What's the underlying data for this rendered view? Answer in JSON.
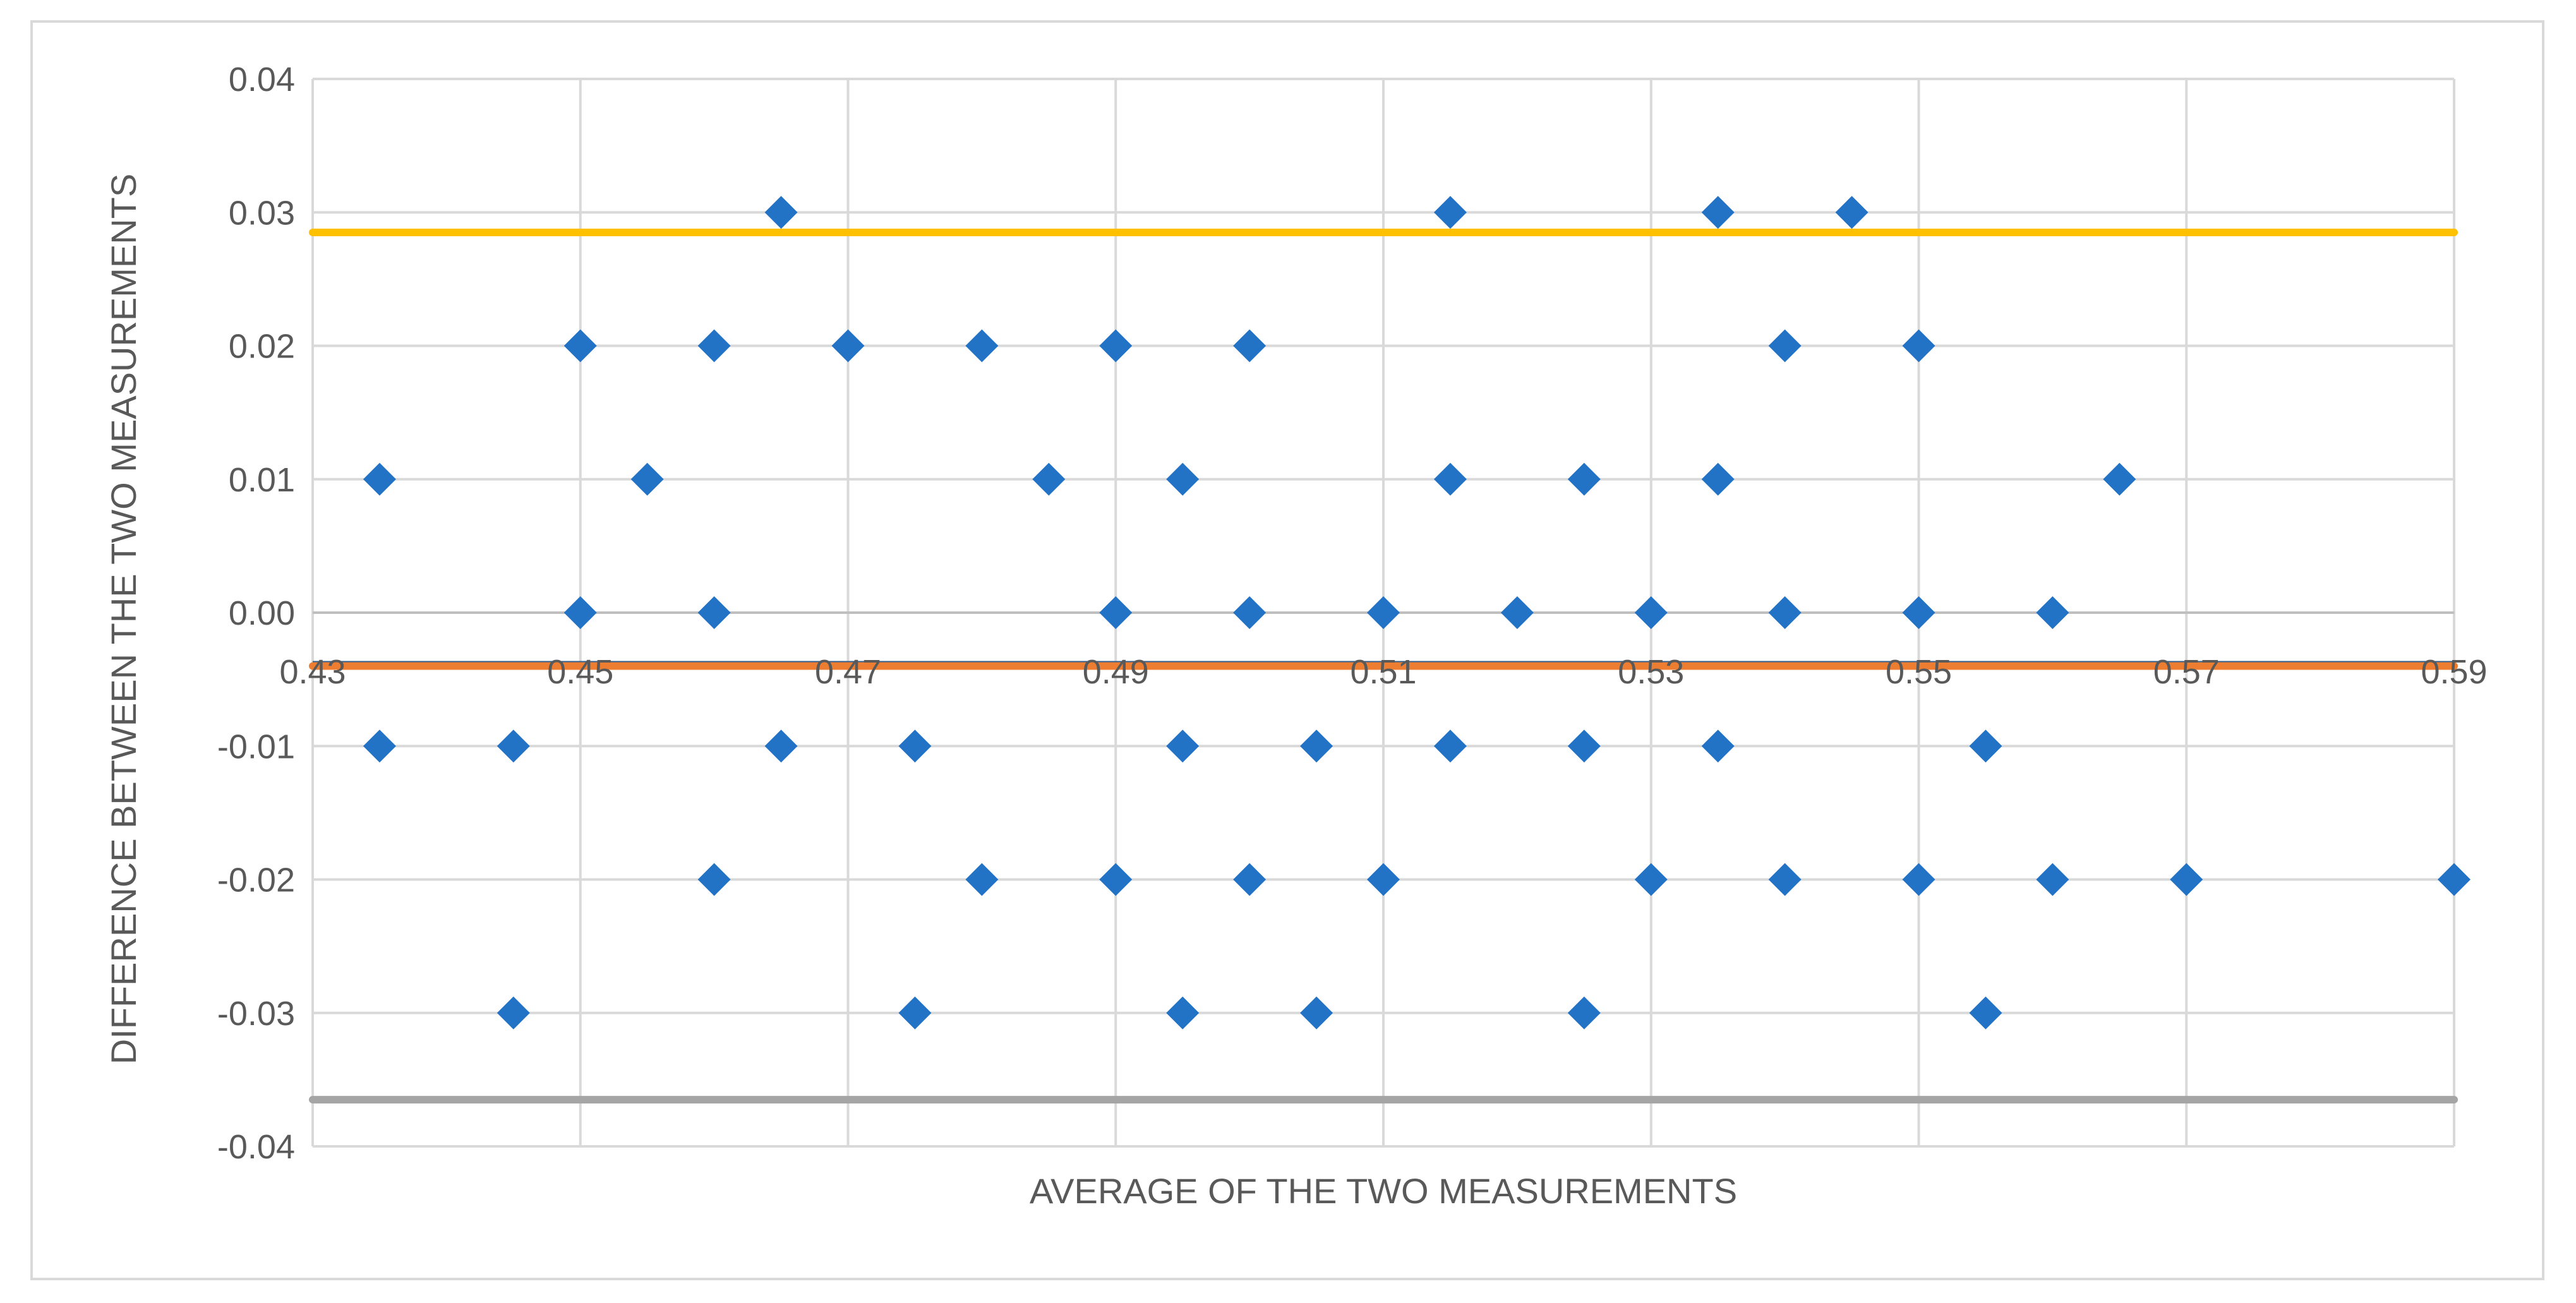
{
  "chart_data": {
    "type": "scatter",
    "title": "",
    "xlabel": "AVERAGE OF THE TWO MEASUREMENTS",
    "ylabel": "DIFFERENCE BETWEEN THE TWO MEASUREMENTS",
    "xlim": [
      0.43,
      0.59
    ],
    "ylim": [
      -0.04,
      0.04
    ],
    "x_ticks": [
      "0.43",
      "0.45",
      "0.47",
      "0.49",
      "0.51",
      "0.53",
      "0.55",
      "0.57",
      "0.59"
    ],
    "y_ticks": [
      "0.04",
      "0.03",
      "0.02",
      "0.01",
      "0.00",
      "-0.01",
      "-0.02",
      "-0.03",
      "-0.04"
    ],
    "grid": true,
    "legend": "none",
    "colors": {
      "points": "#2273c6",
      "upper_limit": "#ffc000",
      "mean": "#ed7d31",
      "lower_limit": "#a5a5a5",
      "grid": "#d9d9d9"
    },
    "reference_lines": [
      {
        "role": "upper-limit",
        "y": 0.0285,
        "x_start": 0.43,
        "x_end": 0.59
      },
      {
        "role": "mean",
        "y": -0.004,
        "x_start": 0.43,
        "x_end": 0.59
      },
      {
        "role": "lower-limit",
        "y": -0.0365,
        "x_start": 0.43,
        "x_end": 0.59
      }
    ],
    "series": [
      {
        "points": [
          [
            0.465,
            0.03
          ],
          [
            0.515,
            0.03
          ],
          [
            0.535,
            0.03
          ],
          [
            0.545,
            0.03
          ],
          [
            0.45,
            0.02
          ],
          [
            0.46,
            0.02
          ],
          [
            0.47,
            0.02
          ],
          [
            0.48,
            0.02
          ],
          [
            0.49,
            0.02
          ],
          [
            0.5,
            0.02
          ],
          [
            0.54,
            0.02
          ],
          [
            0.55,
            0.02
          ],
          [
            0.435,
            0.01
          ],
          [
            0.455,
            0.01
          ],
          [
            0.485,
            0.01
          ],
          [
            0.495,
            0.01
          ],
          [
            0.515,
            0.01
          ],
          [
            0.525,
            0.01
          ],
          [
            0.535,
            0.01
          ],
          [
            0.565,
            0.01
          ],
          [
            0.45,
            0.0
          ],
          [
            0.46,
            0.0
          ],
          [
            0.49,
            0.0
          ],
          [
            0.5,
            0.0
          ],
          [
            0.51,
            0.0
          ],
          [
            0.52,
            0.0
          ],
          [
            0.53,
            0.0
          ],
          [
            0.54,
            0.0
          ],
          [
            0.55,
            0.0
          ],
          [
            0.56,
            0.0
          ],
          [
            0.435,
            -0.01
          ],
          [
            0.445,
            -0.01
          ],
          [
            0.465,
            -0.01
          ],
          [
            0.475,
            -0.01
          ],
          [
            0.495,
            -0.01
          ],
          [
            0.505,
            -0.01
          ],
          [
            0.515,
            -0.01
          ],
          [
            0.525,
            -0.01
          ],
          [
            0.535,
            -0.01
          ],
          [
            0.555,
            -0.01
          ],
          [
            0.46,
            -0.02
          ],
          [
            0.48,
            -0.02
          ],
          [
            0.49,
            -0.02
          ],
          [
            0.5,
            -0.02
          ],
          [
            0.51,
            -0.02
          ],
          [
            0.53,
            -0.02
          ],
          [
            0.54,
            -0.02
          ],
          [
            0.55,
            -0.02
          ],
          [
            0.56,
            -0.02
          ],
          [
            0.57,
            -0.02
          ],
          [
            0.59,
            -0.02
          ],
          [
            0.445,
            -0.03
          ],
          [
            0.475,
            -0.03
          ],
          [
            0.495,
            -0.03
          ],
          [
            0.505,
            -0.03
          ],
          [
            0.525,
            -0.03
          ],
          [
            0.555,
            -0.03
          ]
        ]
      }
    ]
  }
}
